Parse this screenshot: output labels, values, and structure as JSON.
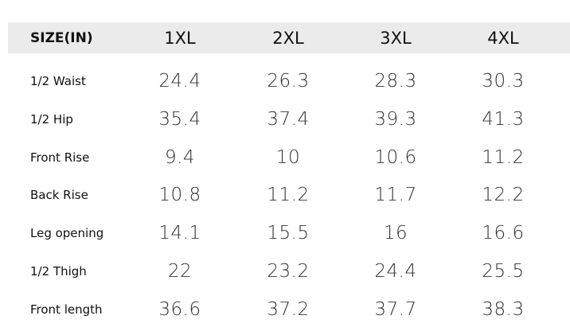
{
  "table": {
    "header": [
      "SIZE(IN)",
      "1XL",
      "2XL",
      "3XL",
      "4XL"
    ],
    "rows": [
      [
        "1/2 Waist",
        "24.4",
        "26.3",
        "28.3",
        "30.3"
      ],
      [
        "1/2 Hip",
        "35.4",
        "37.4",
        "39.3",
        "41.3"
      ],
      [
        "Front Rise",
        "9.4",
        "10",
        "10.6",
        "11.2"
      ],
      [
        "Back Rise",
        "10.8",
        "11.2",
        "11.7",
        "12.2"
      ],
      [
        "Leg opening",
        "14.1",
        "15.5",
        "16",
        "16.6"
      ],
      [
        "1/2 Thigh",
        "22",
        "23.2",
        "24.4",
        "25.5"
      ],
      [
        "Front length",
        "36.6",
        "37.2",
        "37.7",
        "38.3"
      ]
    ]
  }
}
